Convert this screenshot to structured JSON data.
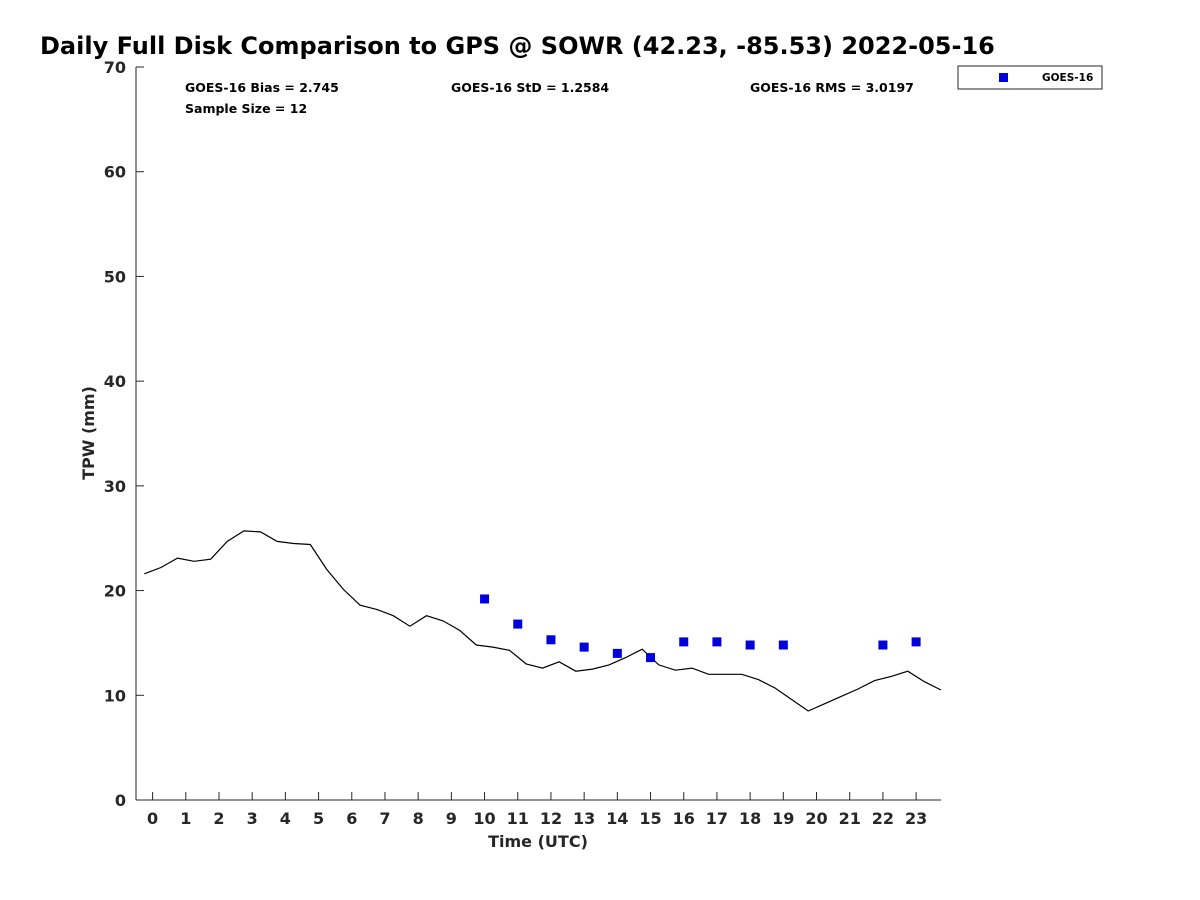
{
  "chart_data": {
    "type": "scatter",
    "title": "Daily Full Disk Comparison to GPS @ SOWR (42.23, -85.53) 2022-05-16",
    "xlabel": "Time (UTC)",
    "ylabel": "TPW (mm)",
    "xlim": [
      -0.5,
      23.75
    ],
    "ylim": [
      0,
      70
    ],
    "x_ticks": [
      0,
      1,
      2,
      3,
      4,
      5,
      6,
      7,
      8,
      9,
      10,
      11,
      12,
      13,
      14,
      15,
      16,
      17,
      18,
      19,
      20,
      21,
      22,
      23
    ],
    "y_ticks": [
      0,
      10,
      20,
      30,
      40,
      50,
      60,
      70
    ],
    "grid": false,
    "legend_position": "top-right-outside",
    "stats": {
      "bias": "GOES-16 Bias = 2.745",
      "std": "GOES-16 StD = 1.2584",
      "rms": "GOES-16 RMS = 3.0197",
      "sample": "Sample Size = 12"
    },
    "series": [
      {
        "name": "GOES-16",
        "kind": "marker",
        "color": "#0000dd",
        "x": [
          10,
          11,
          12,
          13,
          14,
          15,
          16,
          17,
          18,
          19,
          22,
          23
        ],
        "y": [
          19.2,
          16.8,
          15.3,
          14.6,
          14.0,
          13.6,
          15.1,
          15.1,
          14.8,
          14.8,
          14.8,
          15.1
        ]
      },
      {
        "kind": "line",
        "color": "#000000",
        "x": [
          -0.25,
          0.25,
          0.75,
          1.25,
          1.75,
          2.25,
          2.75,
          3.25,
          3.75,
          4.25,
          4.75,
          5.25,
          5.75,
          6.25,
          6.75,
          7.25,
          7.75,
          8.25,
          8.75,
          9.25,
          9.75,
          10.25,
          10.75,
          11.25,
          11.75,
          12.25,
          12.75,
          13.25,
          13.75,
          14.25,
          14.75,
          15.25,
          15.75,
          16.25,
          16.75,
          17.25,
          17.75,
          18.25,
          18.75,
          19.25,
          19.75,
          20.25,
          20.75,
          21.25,
          21.75,
          22.25,
          22.75,
          23.25,
          23.75
        ],
        "y": [
          21.6,
          22.2,
          23.1,
          22.8,
          23.0,
          24.7,
          25.7,
          25.6,
          24.7,
          24.5,
          24.4,
          22.0,
          20.1,
          18.6,
          18.2,
          17.6,
          16.6,
          17.6,
          17.1,
          16.2,
          14.8,
          14.6,
          14.3,
          13.0,
          12.6,
          13.2,
          12.3,
          12.5,
          12.9,
          13.6,
          14.4,
          12.9,
          12.4,
          12.6,
          12.0,
          12.0,
          12.0,
          11.5,
          10.7,
          9.6,
          8.5,
          9.2,
          9.9,
          10.6,
          11.4,
          11.8,
          12.3,
          11.3,
          10.5
        ]
      }
    ]
  }
}
